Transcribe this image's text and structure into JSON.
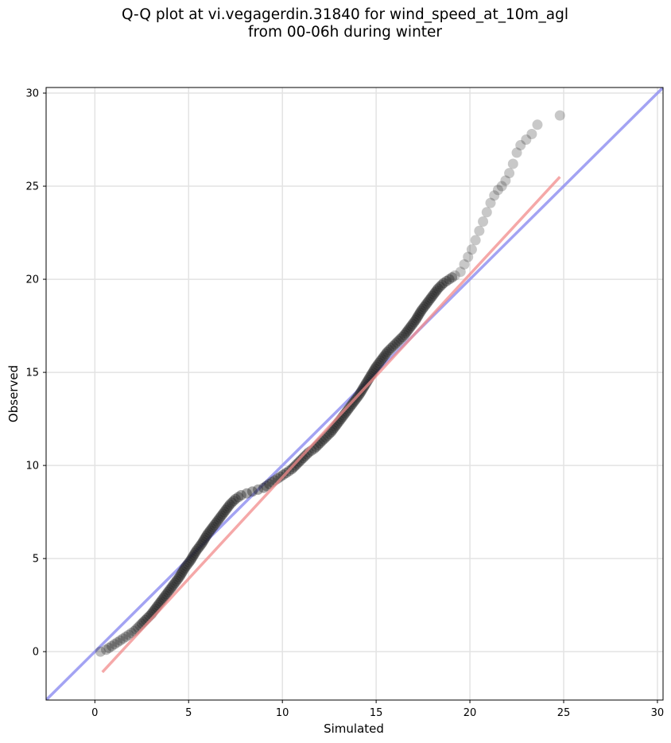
{
  "chart_data": {
    "type": "scatter",
    "title_lines": [
      "Q-Q plot at vi.vegagerdin.31840 for wind_speed_at_10m_agl",
      "from 00-06h during winter"
    ],
    "xlabel": "Simulated",
    "ylabel": "Observed",
    "xlim": [
      -2.6,
      30.3
    ],
    "ylim": [
      -2.6,
      30.3
    ],
    "xticks": [
      0,
      5,
      10,
      15,
      20,
      25,
      30
    ],
    "yticks": [
      0,
      5,
      10,
      15,
      20,
      25,
      30
    ],
    "grid": true,
    "series": [
      {
        "kind": "quantile-points",
        "color": "#222222",
        "x": [
          0.3,
          0.6,
          0.9,
          1.2,
          1.5,
          1.8,
          2.1,
          2.4,
          2.7,
          3.0,
          3.3,
          3.6,
          3.9,
          4.2,
          4.5,
          4.8,
          5.1,
          5.4,
          5.7,
          6.0,
          6.3,
          6.6,
          6.9,
          7.2,
          7.5,
          7.8,
          8.1,
          8.4,
          8.7,
          9.0,
          9.3,
          9.6,
          9.9,
          10.2,
          10.5,
          10.8,
          11.1,
          11.4,
          11.7,
          12.0,
          12.3,
          12.6,
          12.9,
          13.2,
          13.5,
          13.8,
          14.1,
          14.4,
          14.7,
          15.0,
          15.3,
          15.6,
          15.9,
          16.2,
          16.5,
          16.8,
          17.1,
          17.4,
          17.7,
          18.0,
          18.3,
          18.6,
          18.9,
          19.2,
          19.5,
          19.7,
          19.9,
          20.1,
          20.3,
          20.5,
          20.7,
          20.9,
          21.1,
          21.3,
          21.5,
          21.7,
          21.9,
          22.1,
          22.3,
          22.5,
          22.7,
          23.0,
          23.3,
          23.6,
          24.8
        ],
        "y": [
          0.0,
          0.1,
          0.3,
          0.5,
          0.7,
          0.9,
          1.1,
          1.4,
          1.7,
          2.0,
          2.4,
          2.8,
          3.2,
          3.6,
          4.0,
          4.5,
          4.9,
          5.4,
          5.8,
          6.3,
          6.7,
          7.1,
          7.5,
          7.9,
          8.2,
          8.4,
          8.5,
          8.6,
          8.7,
          8.8,
          9.0,
          9.2,
          9.4,
          9.6,
          9.8,
          10.1,
          10.4,
          10.7,
          10.9,
          11.2,
          11.5,
          11.8,
          12.2,
          12.6,
          13.0,
          13.4,
          13.8,
          14.3,
          14.8,
          15.3,
          15.7,
          16.1,
          16.4,
          16.7,
          17.0,
          17.4,
          17.8,
          18.3,
          18.7,
          19.1,
          19.5,
          19.8,
          20.0,
          20.2,
          20.4,
          20.8,
          21.2,
          21.6,
          22.1,
          22.6,
          23.1,
          23.6,
          24.1,
          24.5,
          24.8,
          25.0,
          25.3,
          25.7,
          26.2,
          26.8,
          27.2,
          27.5,
          27.8,
          28.3,
          28.8
        ]
      },
      {
        "kind": "fit-line",
        "color": "#f28b8b",
        "x": [
          0.4,
          24.8
        ],
        "y": [
          -1.1,
          25.5
        ]
      },
      {
        "kind": "identity-line",
        "color": "#8c8cf0",
        "x": [
          -2.6,
          30.3
        ],
        "y": [
          -2.6,
          30.3
        ]
      }
    ]
  }
}
